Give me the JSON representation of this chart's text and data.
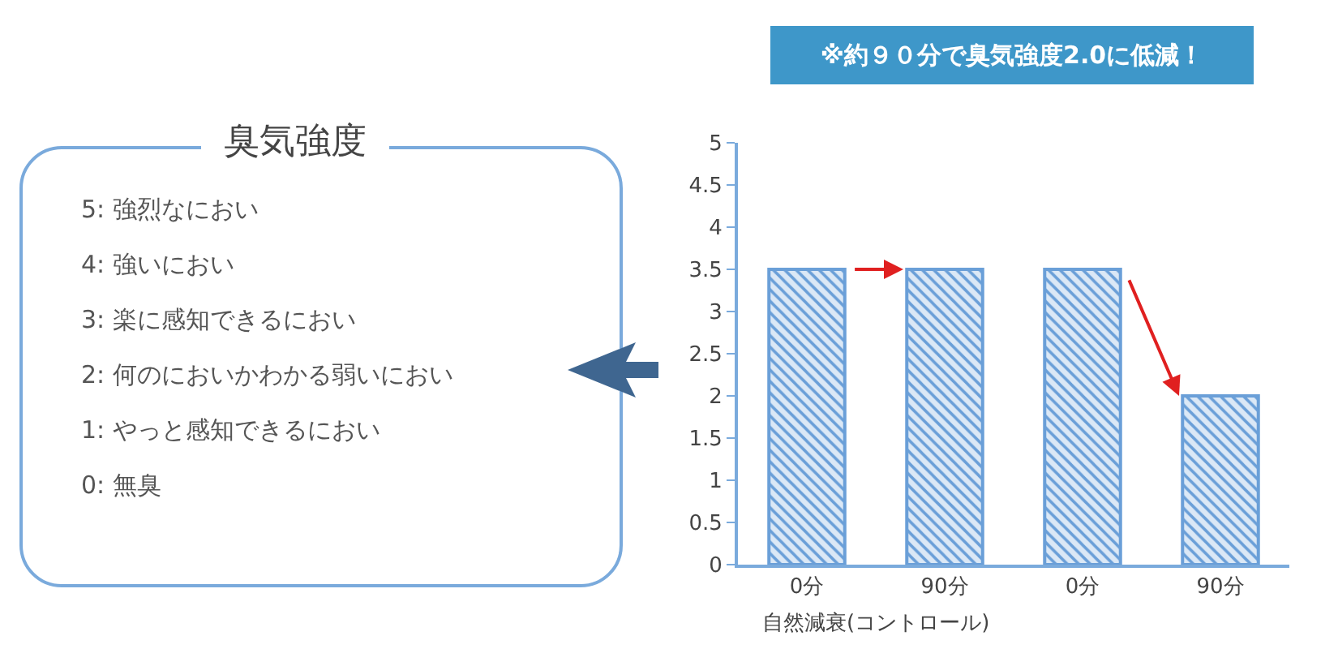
{
  "chart_data": [
    {
      "type": "other",
      "title": "臭気強度",
      "annotations": [
        "5: 強烈なにおい",
        "4: 強いにおい",
        "3: 楽に感知できるにおい",
        "2: 何のにおいかわかる弱いにおい",
        "1: やっと感知できるにおい",
        "0: 無臭"
      ]
    },
    {
      "type": "bar",
      "title": "※約９０分で臭気強度2.0に低減！",
      "categories": [
        "0分",
        "90分",
        "0分",
        "90分"
      ],
      "values": [
        3.5,
        3.5,
        3.5,
        2
      ],
      "color": "#6a9fd8",
      "ylim": [
        0,
        5
      ],
      "yticks": [
        0,
        0.5,
        1,
        1.5,
        2,
        2.5,
        3,
        3.5,
        4,
        4.5,
        5
      ],
      "annotations": [
        "自然減衰(コントロール)"
      ]
    }
  ]
}
